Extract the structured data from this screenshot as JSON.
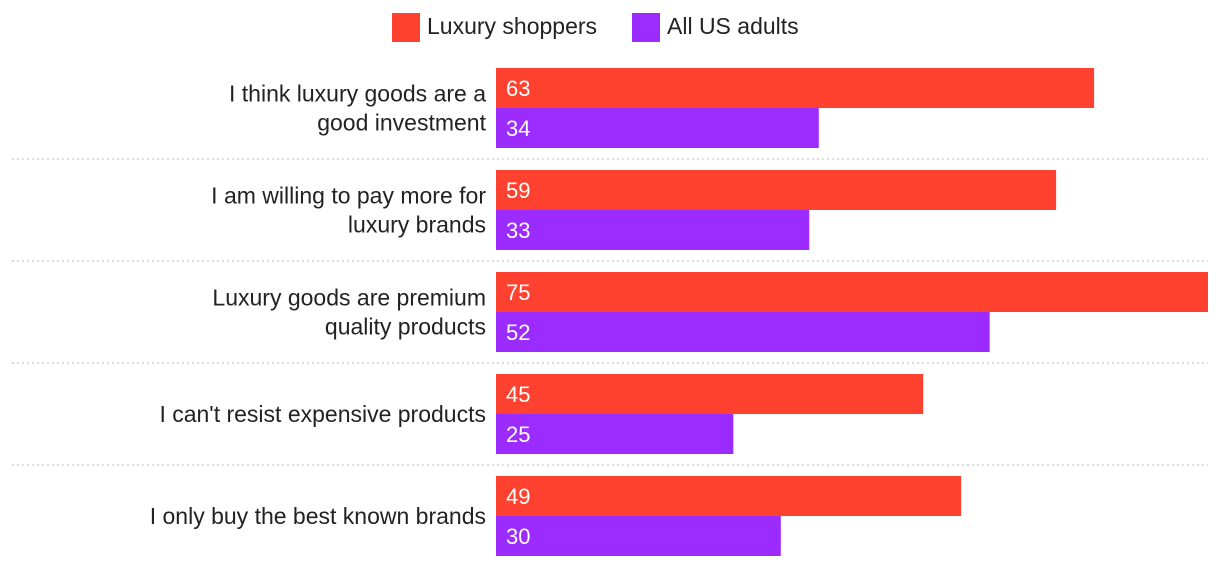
{
  "chart_data": {
    "type": "bar",
    "orientation": "horizontal",
    "title": "",
    "xlabel": "",
    "ylabel": "",
    "xlim": [
      0,
      75
    ],
    "grid": false,
    "legend_position": "top-center",
    "categories": [
      "I think luxury goods are a good investment",
      "I am willing to pay more for luxury brands",
      "Luxury goods are premium quality products",
      "I can't resist expensive products",
      "I only buy the best known brands"
    ],
    "series": [
      {
        "name": "Luxury shoppers",
        "color": "#ff4130",
        "values": [
          63,
          59,
          75,
          45,
          49
        ]
      },
      {
        "name": "All US adults",
        "color": "#9b2bff",
        "values": [
          34,
          33,
          52,
          25,
          30
        ]
      }
    ]
  },
  "colors": {
    "separator": "#c8c8c8",
    "label_text": "#222222",
    "value_text": "#ffffff"
  }
}
